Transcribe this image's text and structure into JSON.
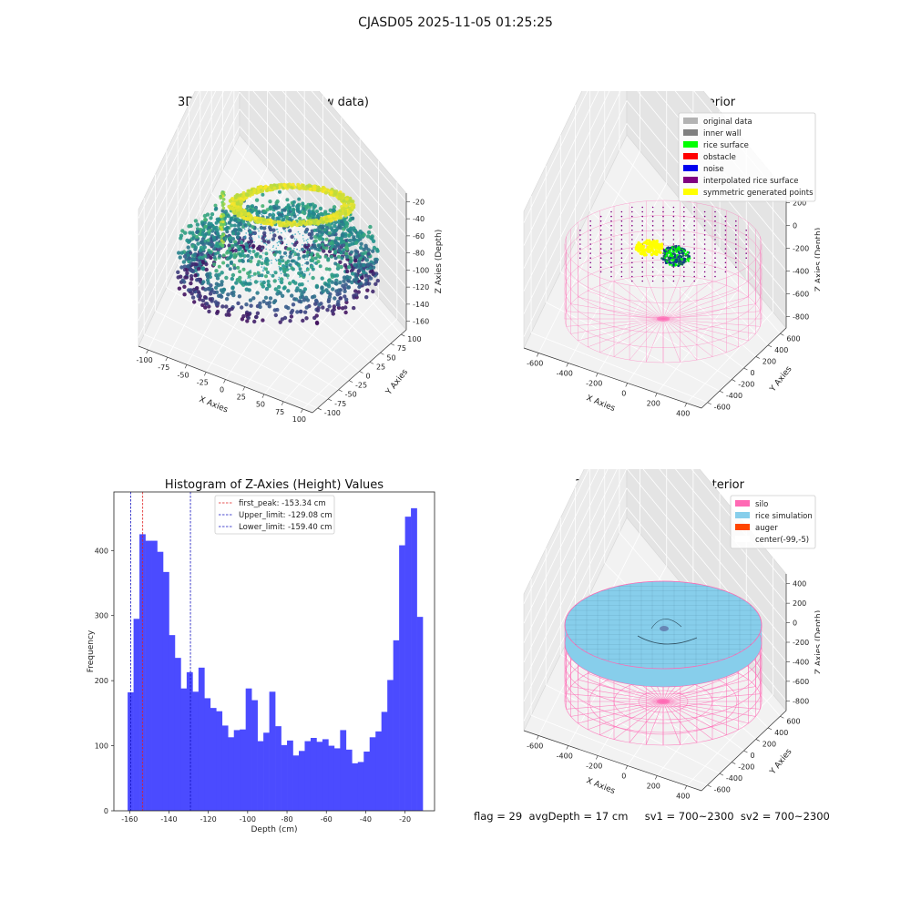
{
  "figure": {
    "suptitle": "CJASD05 2025-11-05 01:25:25",
    "status": "flag = 29  avgDepth = 17 cm     sv1 = 700~2300  sv2 = 700~2300"
  },
  "colors": {
    "hist_bar": "#4b4bff",
    "peak_line": "#e02020",
    "limit_line": "#1010c0",
    "silo": "#ff69b4",
    "rice_sim": "#87ceeb",
    "auger": "#ff4500",
    "original": "#b3b3b3",
    "inner_wall": "#808080",
    "rice_surface": "#00ff00",
    "obstacle": "#ff0000",
    "noise": "#0000ee",
    "interp": "#800080",
    "symmetric": "#ffff00",
    "pane": "#f2f2f2"
  },
  "chart_data": [
    {
      "type": "scatter",
      "title": "3D Plot of Silo Interior(row data)",
      "xlabel": "X Axies",
      "ylabel": "Y Axies",
      "zlabel": "Z Axies (Depth)",
      "x_ticks": [
        "-100",
        "-75",
        "-50",
        "-25",
        "0",
        "25",
        "50",
        "75",
        "100"
      ],
      "y_ticks": [
        "-100",
        "-75",
        "-50",
        "-25",
        "0",
        "25",
        "50",
        "75",
        "100"
      ],
      "z_ticks": [
        "-20",
        "-40",
        "-60",
        "-80",
        "-100",
        "-120",
        "-140",
        "-160"
      ],
      "xlim": [
        -110,
        110
      ],
      "ylim": [
        -110,
        110
      ],
      "zlim": [
        -170,
        -10
      ],
      "colormap": "viridis",
      "grid": true
    },
    {
      "type": "scatter",
      "title": "3D classify of Silo Interior",
      "xlabel": "X Axies",
      "ylabel": "Y Axies",
      "zlabel": "Z Axies (Depth)",
      "x_ticks": [
        "-600",
        "-400",
        "-200",
        "0",
        "200",
        "400"
      ],
      "y_ticks": [
        "-600",
        "-400",
        "-200",
        "0",
        "200",
        "400",
        "600"
      ],
      "z_ticks": [
        "200",
        "0",
        "-200",
        "-400",
        "-600",
        "-800"
      ],
      "legend": [
        {
          "label": "original data",
          "color": "#b3b3b3"
        },
        {
          "label": "inner wall",
          "color": "#808080"
        },
        {
          "label": "rice surface",
          "color": "#00ff00"
        },
        {
          "label": "obstacle",
          "color": "#ff0000"
        },
        {
          "label": "noise",
          "color": "#0000ee"
        },
        {
          "label": "interpolated rice surface",
          "color": "#800080"
        },
        {
          "label": "symmetric generated points",
          "color": "#ffff00"
        }
      ],
      "legend_loc": "upper right",
      "grid": true
    },
    {
      "type": "bar",
      "title": "Histogram of Z-Axies (Height) Values",
      "xlabel": "Depth (cm)",
      "ylabel": "Frequency",
      "bin_start": -161,
      "bin_width": 3,
      "values": [
        182,
        295,
        425,
        415,
        415,
        398,
        367,
        270,
        235,
        188,
        213,
        183,
        220,
        173,
        158,
        153,
        131,
        113,
        124,
        125,
        188,
        170,
        107,
        120,
        183,
        130,
        101,
        108,
        85,
        92,
        107,
        112,
        106,
        110,
        100,
        96,
        124,
        94,
        73,
        75,
        91,
        113,
        122,
        152,
        201,
        262,
        408,
        452,
        465,
        298
      ],
      "xlim": [
        -168,
        -5
      ],
      "ylim": [
        0,
        490
      ],
      "x_ticks": [
        -160,
        -140,
        -120,
        -100,
        -80,
        -60,
        -40,
        -20
      ],
      "y_ticks": [
        0,
        100,
        200,
        300,
        400
      ],
      "vlines": [
        {
          "label": "first_peak: -153.34 cm",
          "x": -153.34,
          "color": "#e02020"
        },
        {
          "label": "Upper_limit: -129.08 cm",
          "x": -129.08,
          "color": "#1010c0"
        },
        {
          "label": "Lower_limit: -159.40 cm",
          "x": -159.4,
          "color": "#1010c0"
        }
      ],
      "legend_loc": "upper center",
      "grid": false
    },
    {
      "type": "area",
      "title": "3D simulation of Silo Interior",
      "xlabel": "X Axies",
      "ylabel": "Y Axies",
      "zlabel": "Z Axies (Depth)",
      "x_ticks": [
        "-600",
        "-400",
        "-200",
        "0",
        "200",
        "400"
      ],
      "y_ticks": [
        "-600",
        "-400",
        "-200",
        "0",
        "200",
        "400",
        "600"
      ],
      "z_ticks": [
        "400",
        "200",
        "0",
        "-200",
        "-400",
        "-600",
        "-800"
      ],
      "legend": [
        {
          "label": "silo",
          "color": "#ff69b4"
        },
        {
          "label": "rice simulation",
          "color": "#87ceeb"
        },
        {
          "label": "auger",
          "color": "#ff4500"
        },
        {
          "label": "center(-99,-5)",
          "color": "#ffffff"
        }
      ],
      "legend_loc": "upper right",
      "grid": true
    }
  ]
}
